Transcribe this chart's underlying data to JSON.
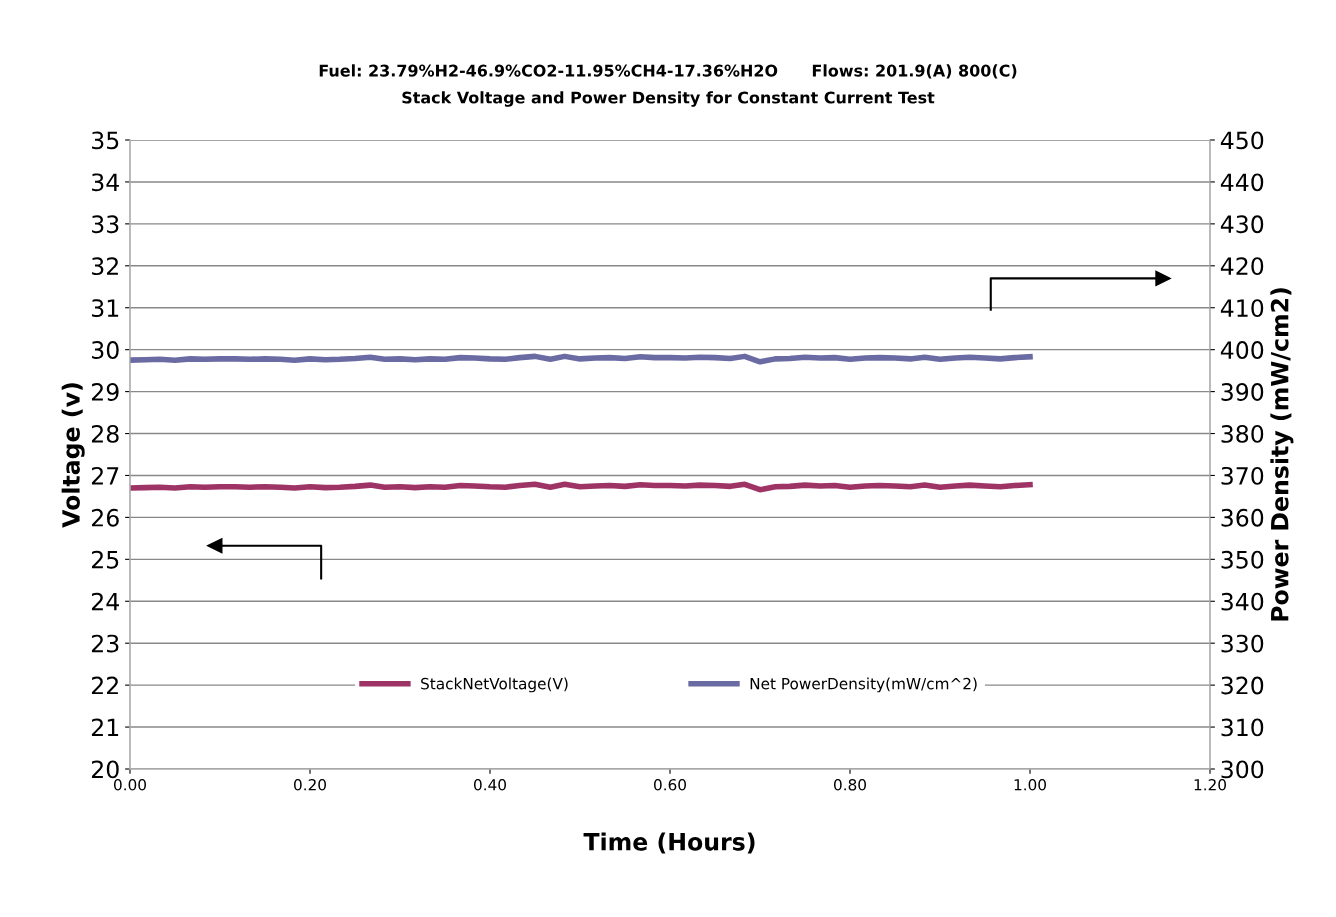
{
  "chart_data": {
    "type": "line",
    "title": "Fuel: 23.79%H2-46.9%CO2-11.95%CH4-17.36%H2O      Flows: 201.9(A) 800(C)",
    "subtitle": "Stack Voltage and Power Density for Constant Current Test",
    "xlabel": "Time (Hours)",
    "ylabel": "Voltage (v)",
    "y2label": "Power Density (mW/cm2)",
    "x": [
      0.0,
      0.017,
      0.033,
      0.05,
      0.067,
      0.083,
      0.1,
      0.117,
      0.133,
      0.15,
      0.167,
      0.183,
      0.2,
      0.217,
      0.233,
      0.25,
      0.267,
      0.283,
      0.3,
      0.317,
      0.333,
      0.35,
      0.367,
      0.383,
      0.4,
      0.417,
      0.433,
      0.45,
      0.467,
      0.483,
      0.5,
      0.517,
      0.533,
      0.55,
      0.567,
      0.583,
      0.6,
      0.617,
      0.633,
      0.65,
      0.667,
      0.683,
      0.7,
      0.717,
      0.733,
      0.75,
      0.767,
      0.783,
      0.8,
      0.817,
      0.833,
      0.85,
      0.867,
      0.883,
      0.9,
      0.917,
      0.933,
      0.95,
      0.967,
      0.983,
      1.0
    ],
    "series": [
      {
        "name": "StackNetVoltage(V)",
        "color": "#9e3366",
        "values": [
          26.7,
          26.71,
          26.72,
          26.7,
          26.73,
          26.72,
          26.73,
          26.73,
          26.72,
          26.73,
          26.72,
          26.7,
          26.73,
          26.71,
          26.72,
          26.74,
          26.77,
          26.72,
          26.73,
          26.71,
          26.73,
          26.72,
          26.76,
          26.75,
          26.73,
          26.72,
          26.76,
          26.79,
          26.72,
          26.79,
          26.73,
          26.75,
          26.76,
          26.74,
          26.78,
          26.76,
          26.76,
          26.75,
          26.77,
          26.76,
          26.74,
          26.79,
          26.66,
          26.73,
          26.74,
          26.77,
          26.75,
          26.76,
          26.72,
          26.75,
          26.76,
          26.75,
          26.73,
          26.77,
          26.72,
          26.75,
          26.77,
          26.75,
          26.73,
          26.76,
          26.78
        ]
      },
      {
        "name": "Net PowerDensity(mW/cm^2)",
        "color": "#6b6ba3",
        "axis": "y2",
        "values": [
          397.5,
          397.6,
          397.7,
          397.5,
          397.8,
          397.7,
          397.8,
          397.8,
          397.7,
          397.8,
          397.7,
          397.5,
          397.8,
          397.6,
          397.7,
          397.9,
          398.2,
          397.7,
          397.8,
          397.6,
          397.8,
          397.7,
          398.1,
          398.0,
          397.8,
          397.7,
          398.1,
          398.4,
          397.7,
          398.4,
          397.8,
          398.0,
          398.1,
          397.9,
          398.3,
          398.1,
          398.1,
          398.0,
          398.2,
          398.1,
          397.9,
          398.4,
          397.1,
          397.8,
          397.9,
          398.2,
          398.0,
          398.1,
          397.7,
          398.0,
          398.1,
          398.0,
          397.8,
          398.2,
          397.7,
          398.0,
          398.2,
          398.0,
          397.8,
          398.1,
          398.3
        ]
      }
    ],
    "xlim": [
      0,
      1.2
    ],
    "xticks": [
      {
        "value": 0,
        "label": "0.00"
      },
      {
        "value": 0.2,
        "label": "0.20"
      },
      {
        "value": 0.4,
        "label": "0.40"
      },
      {
        "value": 0.6,
        "label": "0.60"
      },
      {
        "value": 0.8,
        "label": "0.80"
      },
      {
        "value": 1.0,
        "label": "1.00"
      },
      {
        "value": 1.2,
        "label": "1.20"
      }
    ],
    "ylim": [
      20,
      35
    ],
    "yticks": [
      20,
      21,
      22,
      23,
      24,
      25,
      26,
      27,
      28,
      29,
      30,
      31,
      32,
      33,
      34,
      35
    ],
    "y2lim": [
      300,
      450
    ],
    "y2ticks": [
      300,
      310,
      320,
      330,
      340,
      350,
      360,
      370,
      380,
      390,
      400,
      410,
      420,
      430,
      440,
      450
    ],
    "grid": "y",
    "legend": "bottom",
    "marker": "none",
    "line_style": "solid"
  }
}
